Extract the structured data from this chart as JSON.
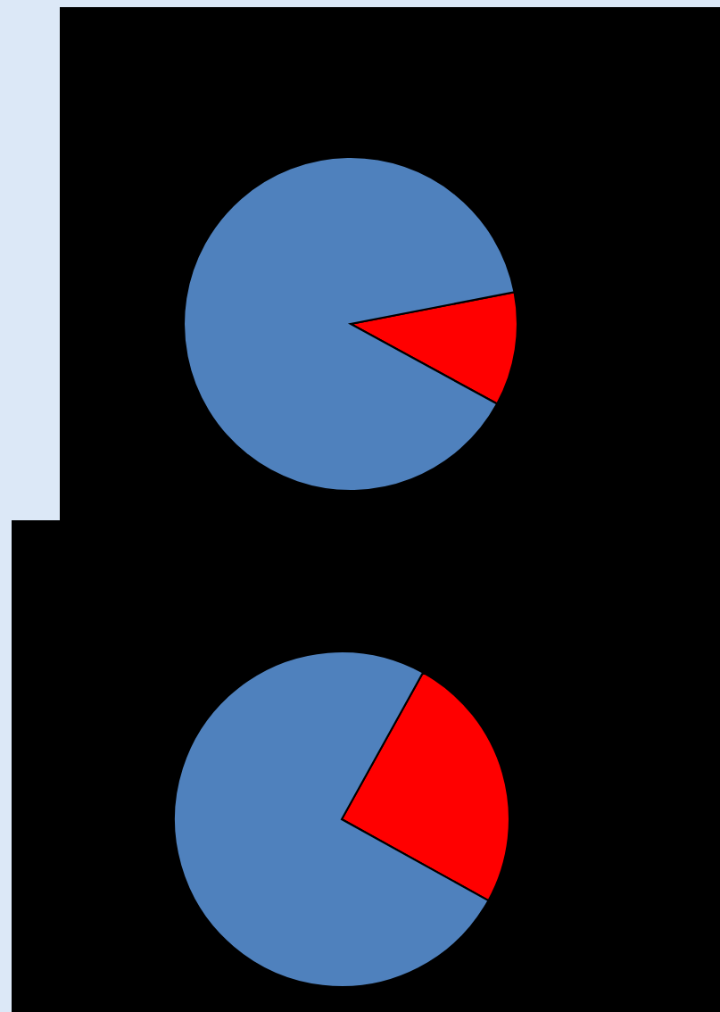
{
  "chart_data": [
    {
      "type": "pie",
      "categories": [
        null,
        null
      ],
      "values": [
        11,
        89
      ],
      "colors": [
        "#ff0000",
        "#4f81bd"
      ]
    },
    {
      "type": "pie",
      "categories": [
        null,
        null
      ],
      "values": [
        25,
        75
      ],
      "colors": [
        "#ff0000",
        "#4f81bd"
      ]
    }
  ]
}
